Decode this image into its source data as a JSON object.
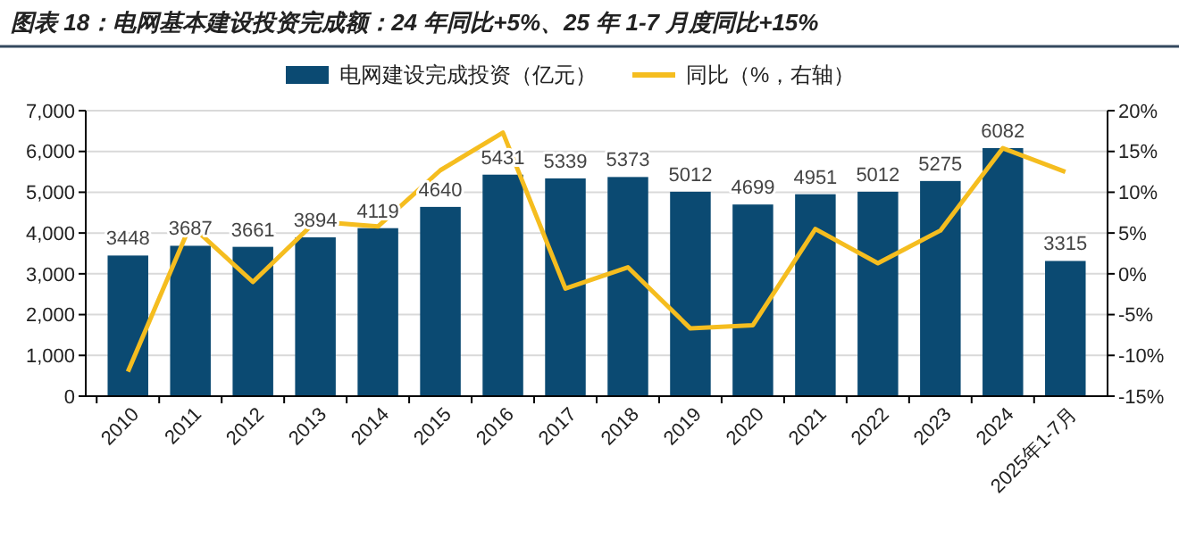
{
  "chart_data": {
    "type": "bar",
    "title": "图表 18：电网基本建设投资完成额：24 年同比+5%、25 年 1-7 月度同比+15%",
    "categories": [
      "2010",
      "2011",
      "2012",
      "2013",
      "2014",
      "2015",
      "2016",
      "2017",
      "2018",
      "2019",
      "2020",
      "2021",
      "2022",
      "2023",
      "2024",
      "2025年1-7月"
    ],
    "series": [
      {
        "name": "电网建设完成投资（亿元）",
        "color": "#0b4a72",
        "values": [
          3448,
          3687,
          3661,
          3894,
          4119,
          4640,
          5431,
          5339,
          5373,
          5012,
          4699,
          4951,
          5012,
          5275,
          6082,
          3315
        ],
        "value_labels": [
          "3448",
          "3687",
          "3661",
          "3894",
          "4119",
          "4640",
          "5431",
          "5339",
          "5373",
          "5012",
          "4699",
          "4951",
          "5012",
          "5275",
          "6082",
          "3315"
        ]
      },
      {
        "name": "同比（%，右轴）",
        "type": "line",
        "axis": "y2",
        "color": "#f5bd1f",
        "values": [
          -12,
          6,
          -1,
          6.4,
          5.8,
          12.7,
          17.3,
          -1.8,
          0.8,
          -6.7,
          -6.3,
          5.5,
          1.3,
          5.3,
          15.4,
          12.5
        ]
      }
    ],
    "ylim": [
      0,
      7000
    ],
    "yticks": [
      {
        "value": 0,
        "label": "0"
      },
      {
        "value": 1000,
        "label": "1,000"
      },
      {
        "value": 2000,
        "label": "2,000"
      },
      {
        "value": 3000,
        "label": "3,000"
      },
      {
        "value": 4000,
        "label": "4,000"
      },
      {
        "value": 5000,
        "label": "5,000"
      },
      {
        "value": 6000,
        "label": "6,000"
      },
      {
        "value": 7000,
        "label": "7,000"
      }
    ],
    "y2lim": [
      -15,
      20
    ],
    "y2ticks": [
      {
        "value": -15,
        "label": "-15%"
      },
      {
        "value": -10,
        "label": "-10%"
      },
      {
        "value": -5,
        "label": "-5%"
      },
      {
        "value": 0,
        "label": "0%"
      },
      {
        "value": 5,
        "label": "5%"
      },
      {
        "value": 10,
        "label": "10%"
      },
      {
        "value": 15,
        "label": "15%"
      },
      {
        "value": 20,
        "label": "20%"
      }
    ],
    "grid": "y",
    "legend": "top",
    "marker": "none",
    "line_style": "solid"
  }
}
